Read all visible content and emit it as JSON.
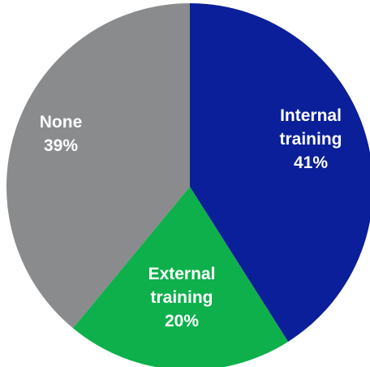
{
  "chart_data": {
    "type": "pie",
    "slices": [
      {
        "lines": [
          "Internal",
          "training",
          "41%"
        ],
        "label": "Internal training",
        "value": 41,
        "color": "#0a1f99"
      },
      {
        "lines": [
          "External",
          "training",
          "20%"
        ],
        "label": "External training",
        "value": 20,
        "color": "#0db04b"
      },
      {
        "lines": [
          "None",
          "39%"
        ],
        "label": "None",
        "value": 39,
        "color": "#898b8d"
      }
    ],
    "start_angle_deg": 0,
    "direction": "clockwise",
    "legend": "none"
  }
}
